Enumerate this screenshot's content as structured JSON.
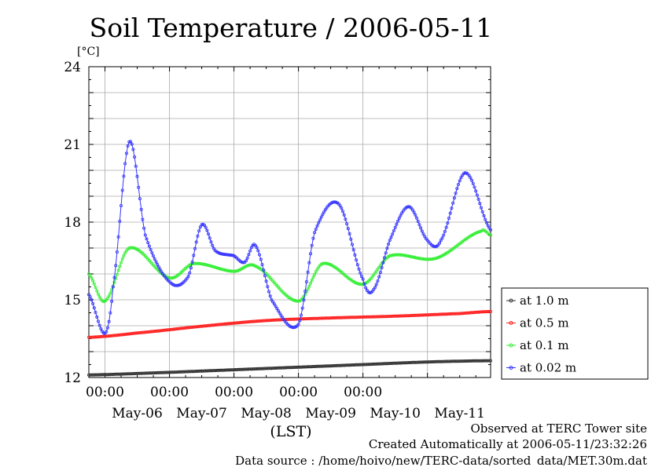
{
  "chart_data": {
    "type": "line",
    "title": "Soil Temperature / 2006-05-11",
    "ylabel": "[°C]",
    "xlabel": "(LST)",
    "ylim": [
      12,
      24
    ],
    "yticks": [
      12,
      15,
      18,
      21,
      24
    ],
    "xlim": [
      "2006-05-05T18:00",
      "2006-05-11T23:30"
    ],
    "x_time_ticks": [
      "00:00",
      "00:00",
      "00:00",
      "00:00",
      "00:00"
    ],
    "x_date_ticks": [
      "May-06",
      "May-07",
      "May-08",
      "May-09",
      "May-10",
      "May-11"
    ],
    "legend_position": "right",
    "grid": true,
    "series": [
      {
        "name": "at 1.0 m",
        "color": "#333333",
        "x": [
          "2006-05-05T18:00",
          "2006-05-07T00:00",
          "2006-05-08T00:00",
          "2006-05-09T00:00",
          "2006-05-10T00:00",
          "2006-05-11T00:00",
          "2006-05-11T23:30"
        ],
        "values": [
          12.1,
          12.2,
          12.3,
          12.4,
          12.5,
          12.6,
          12.65
        ]
      },
      {
        "name": "at 0.5 m",
        "color": "#ff2020",
        "x": [
          "2006-05-05T18:00",
          "2006-05-06T12:00",
          "2006-05-07T12:00",
          "2006-05-08T12:00",
          "2006-05-09T12:00",
          "2006-05-10T12:00",
          "2006-05-11T12:00",
          "2006-05-11T23:30"
        ],
        "values": [
          13.55,
          13.72,
          13.98,
          14.2,
          14.3,
          14.37,
          14.47,
          14.55
        ]
      },
      {
        "name": "at 0.1 m",
        "color": "#33ee33",
        "x": [
          "2006-05-05T18:00",
          "2006-05-06T00:00",
          "2006-05-06T09:00",
          "2006-05-07T00:00",
          "2006-05-07T09:00",
          "2006-05-08T00:00",
          "2006-05-08T08:00",
          "2006-05-09T00:00",
          "2006-05-09T09:00",
          "2006-05-10T00:00",
          "2006-05-10T10:00",
          "2006-05-11T03:00",
          "2006-05-11T20:00",
          "2006-05-11T23:30"
        ],
        "values": [
          16.0,
          14.95,
          17.0,
          15.85,
          16.4,
          16.1,
          16.3,
          14.95,
          16.4,
          15.6,
          16.7,
          16.6,
          17.65,
          17.5
        ]
      },
      {
        "name": "at 0.02 m",
        "color": "#3333ff",
        "x": [
          "2006-05-05T18:00",
          "2006-05-06T00:00",
          "2006-05-06T03:00",
          "2006-05-06T09:00",
          "2006-05-06T15:00",
          "2006-05-07T00:00",
          "2006-05-07T07:00",
          "2006-05-07T12:00",
          "2006-05-07T17:00",
          "2006-05-08T00:00",
          "2006-05-08T04:00",
          "2006-05-08T08:00",
          "2006-05-08T14:00",
          "2006-05-09T00:00",
          "2006-05-09T06:00",
          "2006-05-09T15:00",
          "2006-05-10T00:00",
          "2006-05-10T04:00",
          "2006-05-10T10:00",
          "2006-05-10T17:00",
          "2006-05-11T00:00",
          "2006-05-11T05:00",
          "2006-05-11T14:00",
          "2006-05-11T23:30"
        ],
        "values": [
          15.2,
          13.7,
          15.5,
          21.1,
          17.5,
          15.7,
          15.9,
          17.9,
          16.9,
          16.7,
          16.45,
          17.1,
          15.0,
          14.05,
          17.6,
          18.7,
          15.8,
          15.4,
          17.3,
          18.6,
          17.3,
          17.3,
          19.9,
          17.7
        ]
      }
    ]
  },
  "footer": {
    "line1": "Observed at TERC Tower site",
    "line2": "Created Automatically at 2006-05-11/23:32:26",
    "line3": "Data source : /home/hoivo/new/TERC-data/sorted_data/MET.30m.dat"
  }
}
